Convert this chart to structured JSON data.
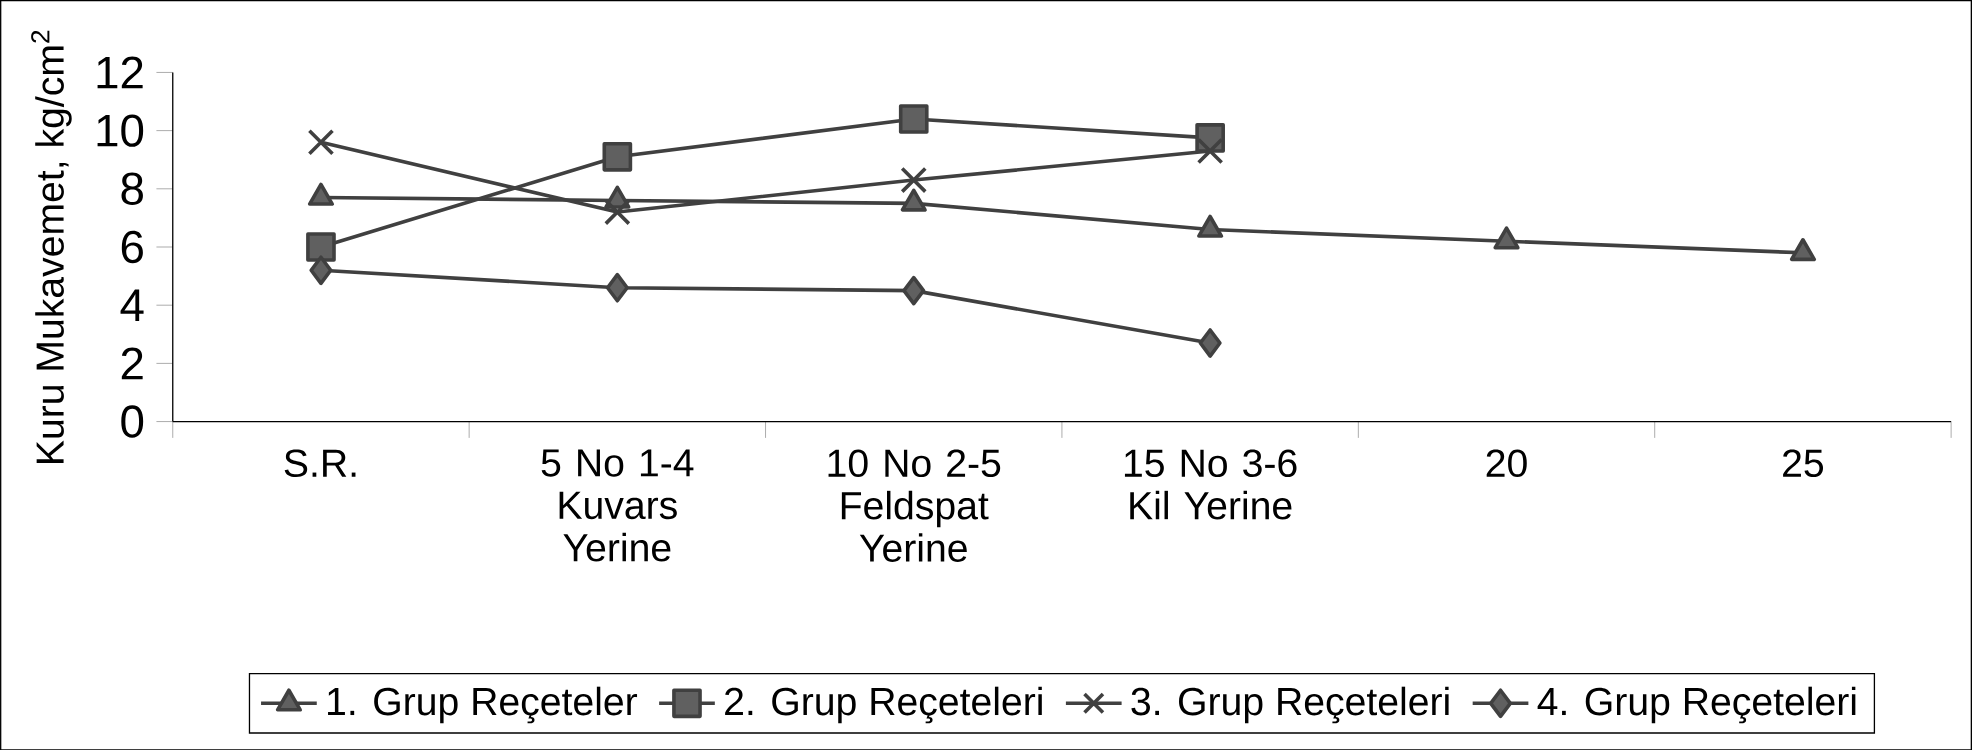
{
  "chart_data": {
    "type": "line",
    "ylabel": "Kuru Mukavemet, kg/cm$^{2}$",
    "categories": [
      "S.R.",
      "5 No 1-4 Kuvars Yerine",
      "10 No 2-5 Feldspat Yerine",
      "15 No 3-6 Kil Yerine",
      "20",
      "25"
    ],
    "ylim": [
      0,
      12
    ],
    "yticks": [
      0,
      2,
      4,
      6,
      8,
      10,
      12
    ],
    "legend": "bottom",
    "grid": false,
    "line_style": "solid",
    "series": [
      {
        "name": "1. Grup Reçeteler",
        "color": "#404040",
        "marker": "triangle",
        "values": [
          7.7,
          7.6,
          7.5,
          6.6,
          6.2,
          5.8
        ]
      },
      {
        "name": "2. Grup Reçeteleri",
        "color": "#404040",
        "marker": "square",
        "values": [
          6.0,
          9.1,
          10.4,
          9.75,
          null,
          null
        ]
      },
      {
        "name": "3. Grup Reçeteleri",
        "color": "#404040",
        "marker": "cross",
        "values": [
          9.6,
          7.2,
          8.3,
          9.3,
          null,
          null
        ]
      },
      {
        "name": "4. Grup Reçeteleri",
        "color": "#404040",
        "marker": "diamond",
        "values": [
          5.2,
          4.6,
          4.5,
          2.7,
          null,
          null
        ]
      }
    ]
  }
}
